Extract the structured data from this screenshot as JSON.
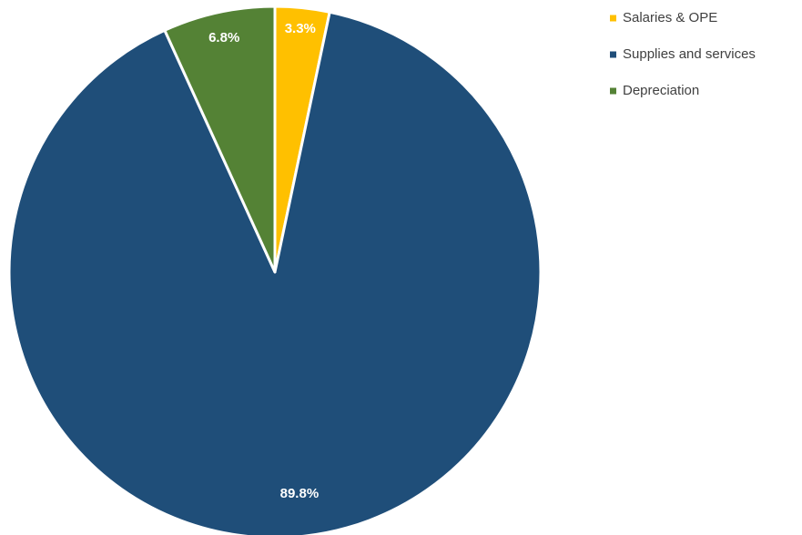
{
  "chart_data": {
    "type": "pie",
    "title": "",
    "start_angle_deg": 0,
    "direction": "clockwise",
    "legend_position": "top-right",
    "slices": [
      {
        "label": "Salaries & OPE",
        "value": 3.3,
        "display": "3.3%",
        "color": "#FFC000"
      },
      {
        "label": "Supplies and services",
        "value": 89.8,
        "display": "89.8%",
        "color": "#1F4E79"
      },
      {
        "label": "Depreciation",
        "value": 6.8,
        "display": "6.8%",
        "color": "#548235"
      }
    ]
  }
}
